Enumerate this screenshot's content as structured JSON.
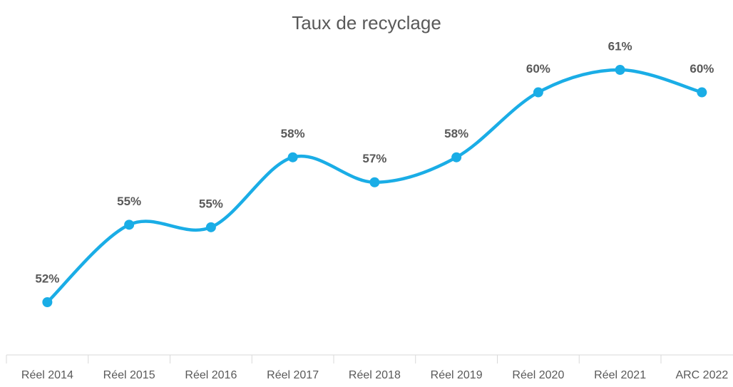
{
  "chart_data": {
    "type": "line",
    "title": "Taux de recyclage",
    "categories": [
      "Réel 2014",
      "Réel 2015",
      "Réel 2016",
      "Réel 2017",
      "Réel 2018",
      "Réel 2019",
      "Réel 2020",
      "Réel 2021",
      "ARC 2022"
    ],
    "series": [
      {
        "name": "Taux de recyclage",
        "color": "#1aade6",
        "values": [
          52.0,
          55.1,
          55.0,
          57.8,
          56.8,
          57.8,
          60.4,
          61.3,
          60.4
        ],
        "value_labels": [
          "52%",
          "55%",
          "55%",
          "58%",
          "57%",
          "58%",
          "60%",
          "61%",
          "60%"
        ]
      }
    ],
    "smooth": true,
    "markers": true
  }
}
